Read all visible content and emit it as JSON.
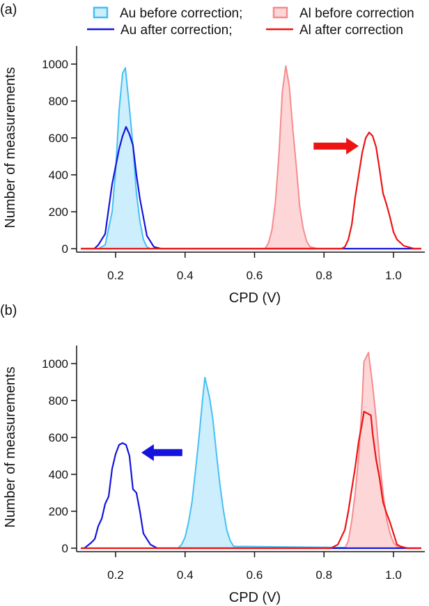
{
  "legend": [
    {
      "label": "Au before correction;",
      "kind": "fill",
      "series": "au_before"
    },
    {
      "label": "Al before correction",
      "kind": "fill",
      "series": "al_before"
    },
    {
      "label": "Au after correction;",
      "kind": "line",
      "series": "au_after"
    },
    {
      "label": "Al after correction",
      "kind": "line",
      "series": "al_after"
    }
  ],
  "colors": {
    "au_before_stroke": "#45bff4",
    "au_before_fill": "#cdeefc",
    "al_before_stroke": "#f68b8d",
    "al_before_fill": "#fdd6d8",
    "au_after": "#1414dc",
    "al_after": "#ee1212",
    "axis": "#111111"
  },
  "chart_data": [
    {
      "type": "area",
      "panel_label": "(a)",
      "xlabel": "CPD (V)",
      "ylabel": "Number of measurements",
      "xlim": [
        0.088,
        1.09
      ],
      "ylim": [
        0,
        1100
      ],
      "xticks": [
        "0.2",
        "0.4",
        "0.6",
        "0.8",
        "1.0"
      ],
      "yticks": [
        "0",
        "200",
        "400",
        "600",
        "800",
        "1000"
      ],
      "grid": false,
      "legend_position": "top",
      "annotation": {
        "type": "arrow",
        "direction": "right",
        "color": "#ee1212",
        "from": [
          0.77,
          556
        ],
        "to": [
          0.9,
          556
        ]
      },
      "series": [
        {
          "name": "Au before correction",
          "key": "au_before",
          "x": [
            0.1,
            0.15,
            0.17,
            0.19,
            0.2,
            0.21,
            0.22,
            0.228,
            0.24,
            0.25,
            0.26,
            0.27,
            0.28,
            0.29,
            0.3,
            1.08
          ],
          "y": [
            0,
            0,
            20,
            200,
            420,
            750,
            950,
            980,
            760,
            560,
            300,
            150,
            50,
            10,
            0,
            0
          ]
        },
        {
          "name": "Au after correction",
          "key": "au_after",
          "x": [
            0.1,
            0.139,
            0.15,
            0.17,
            0.19,
            0.21,
            0.22,
            0.23,
            0.24,
            0.25,
            0.26,
            0.27,
            0.28,
            0.29,
            0.31,
            0.33,
            1.08
          ],
          "y": [
            0,
            0,
            20,
            80,
            350,
            540,
            610,
            660,
            620,
            560,
            400,
            270,
            170,
            70,
            10,
            0,
            0
          ]
        },
        {
          "name": "Al before correction",
          "key": "al_before",
          "x": [
            0.1,
            0.63,
            0.64,
            0.65,
            0.66,
            0.67,
            0.68,
            0.69,
            0.7,
            0.71,
            0.72,
            0.73,
            0.74,
            0.75,
            0.76,
            0.78,
            1.08
          ],
          "y": [
            0,
            0,
            30,
            100,
            250,
            500,
            850,
            990,
            880,
            650,
            450,
            230,
            110,
            40,
            10,
            0,
            0
          ]
        },
        {
          "name": "Al after correction",
          "key": "al_after",
          "x": [
            0.1,
            0.851,
            0.86,
            0.87,
            0.88,
            0.89,
            0.9,
            0.91,
            0.92,
            0.93,
            0.94,
            0.95,
            0.96,
            0.97,
            0.98,
            0.99,
            1.0,
            1.01,
            1.03,
            1.06,
            1.08
          ],
          "y": [
            0,
            0,
            10,
            50,
            130,
            280,
            400,
            520,
            600,
            630,
            610,
            550,
            430,
            300,
            240,
            170,
            90,
            50,
            15,
            0,
            0
          ]
        }
      ]
    },
    {
      "type": "area",
      "panel_label": "(b)",
      "xlabel": "CPD (V)",
      "ylabel": "Number of measurements",
      "xlim": [
        0.088,
        1.09
      ],
      "ylim": [
        0,
        1100
      ],
      "xticks": [
        "0.2",
        "0.4",
        "0.6",
        "0.8",
        "1.0"
      ],
      "yticks": [
        "0",
        "200",
        "400",
        "600",
        "800",
        "1000"
      ],
      "grid": false,
      "annotation": {
        "type": "arrow",
        "direction": "left",
        "color": "#1414dc",
        "from": [
          0.392,
          518
        ],
        "to": [
          0.274,
          518
        ]
      },
      "series": [
        {
          "name": "Au before correction",
          "key": "au_before",
          "x": [
            0.1,
            0.38,
            0.39,
            0.4,
            0.41,
            0.42,
            0.43,
            0.44,
            0.45,
            0.457,
            0.47,
            0.48,
            0.49,
            0.5,
            0.51,
            0.52,
            0.53,
            0.54,
            1.08
          ],
          "y": [
            0,
            0,
            20,
            60,
            140,
            250,
            420,
            600,
            800,
            925,
            820,
            700,
            520,
            350,
            210,
            100,
            40,
            10,
            0
          ]
        },
        {
          "name": "Au after correction",
          "key": "au_after",
          "x": [
            0.1,
            0.11,
            0.13,
            0.14,
            0.15,
            0.16,
            0.17,
            0.18,
            0.19,
            0.2,
            0.21,
            0.22,
            0.23,
            0.24,
            0.25,
            0.26,
            0.27,
            0.28,
            0.29,
            0.3,
            0.32,
            1.08
          ],
          "y": [
            0,
            0,
            30,
            50,
            120,
            160,
            240,
            280,
            430,
            510,
            560,
            570,
            560,
            500,
            320,
            300,
            200,
            80,
            50,
            20,
            0,
            0
          ]
        },
        {
          "name": "Al before correction",
          "key": "al_before",
          "x": [
            0.1,
            0.86,
            0.87,
            0.88,
            0.89,
            0.9,
            0.91,
            0.915,
            0.928,
            0.94,
            0.95,
            0.96,
            0.97,
            0.98,
            0.99,
            1.0,
            1.01,
            1.02,
            1.08
          ],
          "y": [
            0,
            0,
            40,
            150,
            300,
            500,
            800,
            1010,
            1060,
            880,
            700,
            480,
            300,
            160,
            80,
            30,
            10,
            0,
            0
          ]
        },
        {
          "name": "Al after correction",
          "key": "al_after",
          "x": [
            0.1,
            0.82,
            0.84,
            0.86,
            0.87,
            0.88,
            0.89,
            0.9,
            0.91,
            0.915,
            0.935,
            0.94,
            0.95,
            0.96,
            0.97,
            0.98,
            0.99,
            1.0,
            1.01,
            1.02,
            1.04,
            1.08
          ],
          "y": [
            0,
            0,
            20,
            100,
            200,
            320,
            440,
            580,
            680,
            740,
            720,
            620,
            480,
            380,
            250,
            190,
            140,
            80,
            20,
            10,
            0,
            0
          ]
        }
      ]
    }
  ]
}
